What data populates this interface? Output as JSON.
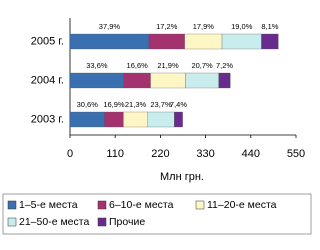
{
  "chart_data": {
    "type": "stacked-barh",
    "categories": [
      "2005 г.",
      "2004 г.",
      "2003 г."
    ],
    "series": [
      {
        "name": "1–5-е места",
        "color": "#3a6fb0",
        "values": [
          192,
          131,
          84
        ],
        "shares": [
          "37,9%",
          "33,6%",
          "30,6%"
        ]
      },
      {
        "name": "6–10-е места",
        "color": "#a3326f",
        "values": [
          87,
          65,
          46
        ],
        "shares": [
          "17,2%",
          "16,6%",
          "16,9%"
        ]
      },
      {
        "name": "11–20-е места",
        "color": "#fff6c6",
        "values": [
          91,
          85,
          59
        ],
        "shares": [
          "17,9%",
          "21,9%",
          "21,3%"
        ]
      },
      {
        "name": "21–50-е места",
        "color": "#c9ecec",
        "values": [
          96,
          81,
          65
        ],
        "shares": [
          "19,0%",
          "20,7%",
          "23,7%"
        ]
      },
      {
        "name": "Прочие",
        "color": "#6a2c8c",
        "values": [
          41,
          28,
          20
        ],
        "shares": [
          "8,1%",
          "7,2%",
          "7,4%"
        ]
      }
    ],
    "xlabel": "Млн грн.",
    "xlim": [
      0,
      550
    ],
    "xticks": [
      0,
      110,
      220,
      330,
      440,
      550
    ]
  }
}
